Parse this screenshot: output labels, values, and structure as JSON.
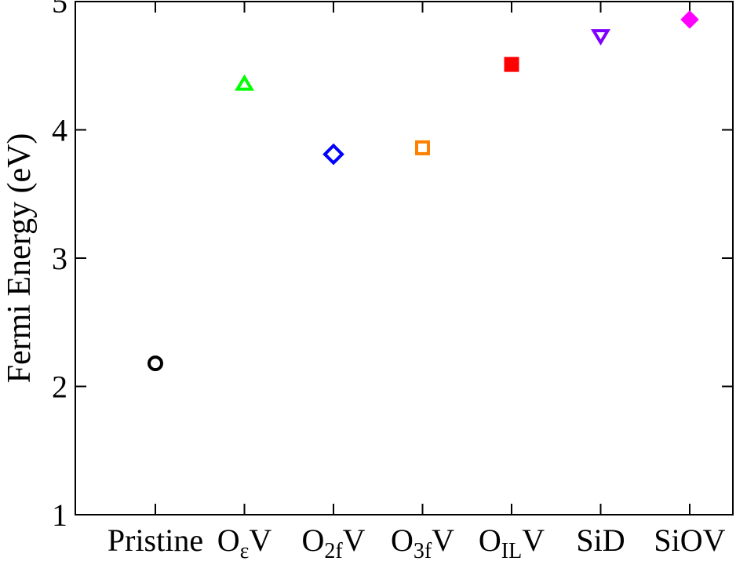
{
  "chart_data": {
    "type": "scatter",
    "title": "",
    "xlabel": "",
    "ylabel": "Fermi Energy (eV)",
    "ylim": [
      1,
      5
    ],
    "yticks": [
      "1",
      "2",
      "3",
      "4",
      "5"
    ],
    "grid": false,
    "categories": [
      {
        "label": "Pristine",
        "base": "Pristine",
        "sub": "",
        "after": ""
      },
      {
        "label": "OεV",
        "base": "O",
        "sub": "ε",
        "after": "V"
      },
      {
        "label": "O2fV",
        "base": "O",
        "sub": "2f",
        "after": "V"
      },
      {
        "label": "O3fV",
        "base": "O",
        "sub": "3f",
        "after": "V"
      },
      {
        "label": "OILV",
        "base": "O",
        "sub": "IL",
        "after": "V"
      },
      {
        "label": "SiD",
        "base": "SiD",
        "sub": "",
        "after": ""
      },
      {
        "label": "SiOV",
        "base": "SiOV",
        "sub": "",
        "after": ""
      }
    ],
    "points": [
      {
        "category": "Pristine",
        "y": 2.18,
        "marker": "circle",
        "filled": false,
        "color": "#000000"
      },
      {
        "category": "OεV",
        "y": 4.36,
        "marker": "triangle-up",
        "filled": false,
        "color": "#00ff00"
      },
      {
        "category": "O2fV",
        "y": 3.81,
        "marker": "diamond",
        "filled": false,
        "color": "#0000ff"
      },
      {
        "category": "O3fV",
        "y": 3.86,
        "marker": "square",
        "filled": false,
        "color": "#ff8000"
      },
      {
        "category": "OILV",
        "y": 4.51,
        "marker": "square",
        "filled": true,
        "color": "#ff0000"
      },
      {
        "category": "SiD",
        "y": 4.73,
        "marker": "triangle-down",
        "filled": false,
        "color": "#8000ff"
      },
      {
        "category": "SiOV",
        "y": 4.86,
        "marker": "diamond",
        "filled": true,
        "color": "#ff00ff"
      }
    ]
  }
}
